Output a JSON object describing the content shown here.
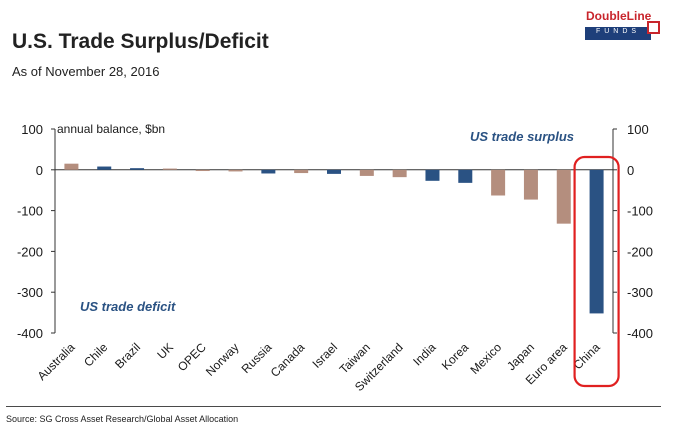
{
  "header": {
    "title": "U.S. Trade Surplus/Deficit",
    "subtitle": "As of November 28, 2016"
  },
  "logo": {
    "name": "DoubleLine",
    "sub": "FUNDS"
  },
  "footer": {
    "source": "Source: SG Cross Asset Research/Global Asset Allocation"
  },
  "colors": {
    "surplus_bar": "#b48e7e",
    "deficit_bar": "#2a5283",
    "highlight": "#e02020"
  },
  "chart_data": {
    "type": "bar",
    "title": "U.S. Trade Surplus/Deficit",
    "ylabel": "annual balance, $bn",
    "ylim": [
      -400,
      100
    ],
    "yticks": [
      100,
      0,
      -100,
      -200,
      -300,
      -400
    ],
    "grid": false,
    "secondary_y_axis": true,
    "categories": [
      "Australia",
      "Chile",
      "Brazil",
      "UK",
      "OPEC",
      "Norway",
      "Russia",
      "Canada",
      "Israel",
      "Taiwan",
      "Switzerland",
      "India",
      "Korea",
      "Mexico",
      "Japan",
      "Euro area",
      "China"
    ],
    "values": [
      15,
      8,
      4,
      3,
      -3,
      -4,
      -9,
      -8,
      -10,
      -15,
      -18,
      -27,
      -32,
      -63,
      -73,
      -132,
      -352
    ],
    "bar_colors": [
      "#b48e7e",
      "#2a5283",
      "#2a5283",
      "#b48e7e",
      "#b48e7e",
      "#b48e7e",
      "#2a5283",
      "#b48e7e",
      "#2a5283",
      "#b48e7e",
      "#b48e7e",
      "#2a5283",
      "#2a5283",
      "#b48e7e",
      "#b48e7e",
      "#b48e7e",
      "#2a5283"
    ],
    "annotations": [
      "US trade surplus",
      "US trade deficit"
    ],
    "highlighted_category": "China"
  }
}
